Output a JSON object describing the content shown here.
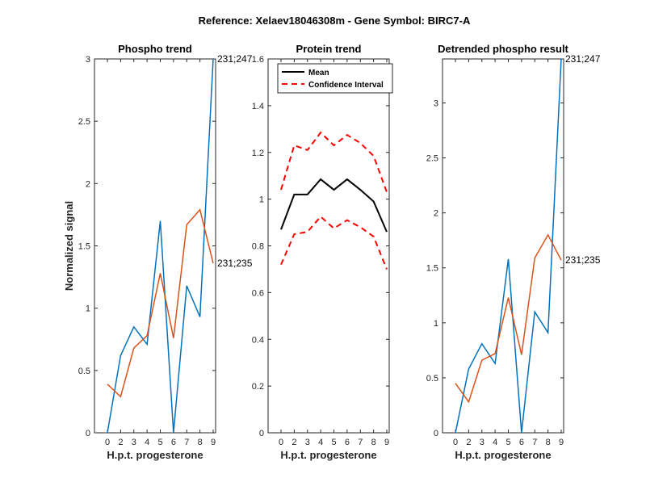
{
  "figure": {
    "suptitle": "Reference:  Xelaev18046308m - Gene Symbol:  BIRC7-A"
  },
  "colors": {
    "blue": "#0072BD",
    "orange": "#D95319",
    "black": "#000000",
    "red": "#FF0000"
  },
  "chart_data": [
    {
      "type": "line",
      "title": "Phospho trend",
      "xlabel": "H.p.t. progesterone",
      "ylabel": "Normalized signal",
      "xticklabels": [
        "0",
        "2",
        "3",
        "4",
        "5",
        "6",
        "7",
        "8",
        "9"
      ],
      "ylim": [
        0,
        3
      ],
      "yticks": [
        0,
        0.5,
        1,
        1.5,
        2,
        2.5,
        3
      ],
      "yticklabels": [
        "0",
        "0.5",
        "1",
        "1.5",
        "2",
        "2.5",
        "3"
      ],
      "series": [
        {
          "name": "231;247",
          "color": "#0072BD",
          "style": "solid",
          "values": [
            0,
            0.62,
            0.85,
            0.71,
            1.7,
            0,
            1.18,
            0.93,
            3.0
          ]
        },
        {
          "name": "231;235",
          "color": "#D95319",
          "style": "solid",
          "values": [
            0.39,
            0.29,
            0.68,
            0.78,
            1.28,
            0.76,
            1.67,
            1.79,
            1.36
          ]
        }
      ],
      "annotations": [
        {
          "text": "231;247",
          "series": 0
        },
        {
          "text": "231;235",
          "series": 1
        }
      ]
    },
    {
      "type": "line",
      "title": "Protein trend",
      "xlabel": "H.p.t. progesterone",
      "ylabel": "",
      "xticklabels": [
        "0",
        "2",
        "3",
        "4",
        "5",
        "6",
        "7",
        "8",
        "9"
      ],
      "ylim": [
        0,
        1.6
      ],
      "yticks": [
        0,
        0.2,
        0.4,
        0.6,
        0.8,
        1,
        1.2,
        1.4,
        1.6
      ],
      "yticklabels": [
        "0",
        "0.2",
        "0.4",
        "0.6",
        "0.8",
        "1",
        "1.2",
        "1.4",
        "1.6"
      ],
      "legend": {
        "position": "top-left",
        "entries": [
          "Mean",
          "Confidence Interval"
        ]
      },
      "series": [
        {
          "name": "Mean",
          "color": "#000000",
          "style": "solid",
          "values": [
            0.87,
            1.02,
            1.02,
            1.085,
            1.04,
            1.085,
            1.04,
            0.99,
            0.86
          ]
        },
        {
          "name": "Confidence Interval",
          "color": "#FF0000",
          "style": "dashed",
          "values": [
            1.04,
            1.23,
            1.21,
            1.285,
            1.23,
            1.275,
            1.24,
            1.185,
            1.03
          ]
        },
        {
          "name": "Confidence Interval",
          "color": "#FF0000",
          "style": "dashed",
          "values": [
            0.72,
            0.85,
            0.86,
            0.925,
            0.875,
            0.91,
            0.88,
            0.84,
            0.7
          ]
        }
      ]
    },
    {
      "type": "line",
      "title": "Detrended phospho result",
      "xlabel": "H.p.t. progesterone",
      "ylabel": "",
      "xticklabels": [
        "0",
        "2",
        "3",
        "4",
        "5",
        "6",
        "7",
        "8",
        "9"
      ],
      "ylim": [
        0,
        3.4
      ],
      "yticks": [
        0,
        0.5,
        1,
        1.5,
        2,
        2.5,
        3
      ],
      "yticklabels": [
        "0",
        "0.5",
        "1",
        "1.5",
        "2",
        "2.5",
        "3"
      ],
      "series": [
        {
          "name": "231;247",
          "color": "#0072BD",
          "style": "solid",
          "values": [
            0,
            0.58,
            0.81,
            0.63,
            1.58,
            0,
            1.1,
            0.91,
            3.4
          ]
        },
        {
          "name": "231;235",
          "color": "#D95319",
          "style": "solid",
          "values": [
            0.45,
            0.28,
            0.66,
            0.72,
            1.23,
            0.71,
            1.59,
            1.8,
            1.57
          ]
        }
      ],
      "annotations": [
        {
          "text": "231;247",
          "series": 0
        },
        {
          "text": "231;235",
          "series": 1
        }
      ]
    }
  ]
}
